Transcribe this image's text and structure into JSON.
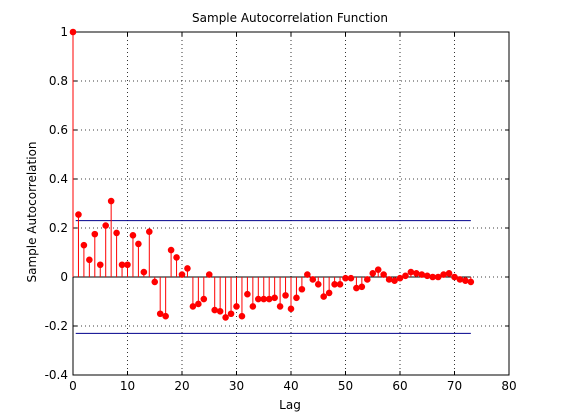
{
  "chart_data": {
    "type": "stem",
    "title": "Sample Autocorrelation Function",
    "xlabel": "Lag",
    "ylabel": "Sample Autocorrelation",
    "xlim": [
      0,
      80
    ],
    "ylim": [
      -0.4,
      1
    ],
    "grid": true,
    "x_ticks": [
      "0",
      "10",
      "20",
      "30",
      "40",
      "50",
      "60",
      "70",
      "80"
    ],
    "y_ticks": [
      "-0.4",
      "-0.2",
      "0",
      "0.2",
      "0.4",
      "0.6",
      "0.8",
      "1"
    ],
    "confidence_bounds": [
      0.23,
      -0.23
    ],
    "x": [
      0,
      1,
      2,
      3,
      4,
      5,
      6,
      7,
      8,
      9,
      10,
      11,
      12,
      13,
      14,
      15,
      16,
      17,
      18,
      19,
      20,
      21,
      22,
      23,
      24,
      25,
      26,
      27,
      28,
      29,
      30,
      31,
      32,
      33,
      34,
      35,
      36,
      37,
      38,
      39,
      40,
      41,
      42,
      43,
      44,
      45,
      46,
      47,
      48,
      49,
      50,
      51,
      52,
      53,
      54,
      55,
      56,
      57,
      58,
      59,
      60,
      61,
      62,
      63,
      64,
      65,
      66,
      67,
      68,
      69,
      70,
      71,
      72,
      73
    ],
    "values": [
      1.0,
      0.255,
      0.13,
      0.07,
      0.175,
      0.05,
      0.21,
      0.31,
      0.18,
      0.05,
      0.05,
      0.17,
      0.135,
      0.02,
      0.185,
      -0.02,
      -0.15,
      -0.16,
      0.11,
      0.08,
      0.01,
      0.035,
      -0.12,
      -0.11,
      -0.09,
      0.01,
      -0.135,
      -0.14,
      -0.165,
      -0.15,
      -0.12,
      -0.16,
      -0.07,
      -0.12,
      -0.09,
      -0.09,
      -0.09,
      -0.085,
      -0.12,
      -0.075,
      -0.13,
      -0.085,
      -0.05,
      0.01,
      -0.01,
      -0.03,
      -0.08,
      -0.065,
      -0.03,
      -0.03,
      -0.005,
      -0.005,
      -0.045,
      -0.04,
      -0.01,
      0.015,
      0.03,
      0.01,
      -0.01,
      -0.015,
      -0.005,
      0.005,
      0.02,
      0.015,
      0.01,
      0.005,
      0,
      0,
      0.01,
      0.015,
      0,
      -0.01,
      -0.015,
      -0.02
    ],
    "colors": {
      "stem": "#ff0000",
      "bound": "#00008b",
      "axis": "#000000"
    }
  }
}
